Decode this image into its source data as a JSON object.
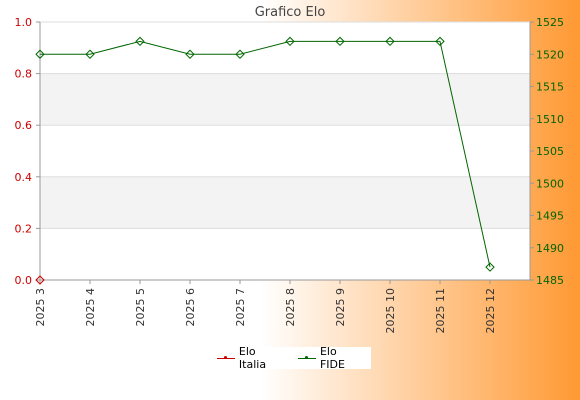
{
  "chart_data": {
    "type": "line",
    "title": "Grafico Elo",
    "categories": [
      "2025 3",
      "2025 4",
      "2025 5",
      "2025 6",
      "2025 7",
      "2025 8",
      "2025 9",
      "2025 10",
      "2025 11",
      "2025 12"
    ],
    "left_axis": {
      "min": 0.0,
      "max": 1.0,
      "ticks": [
        "0.0",
        "0.2",
        "0.4",
        "0.6",
        "0.8",
        "1.0"
      ],
      "color": "#cc0000"
    },
    "right_axis": {
      "min": 1485,
      "max": 1525,
      "ticks": [
        "1485",
        "1490",
        "1495",
        "1500",
        "1505",
        "1510",
        "1515",
        "1520",
        "1525"
      ],
      "color": "#006600"
    },
    "series": [
      {
        "name": "Elo Italia",
        "axis": "left",
        "color": "#cc0000",
        "values": [
          0,
          null,
          null,
          null,
          null,
          null,
          null,
          null,
          null,
          null
        ]
      },
      {
        "name": "Elo FIDE",
        "axis": "right",
        "color": "#006600",
        "values": [
          1520,
          1520,
          1522,
          1520,
          1520,
          1522,
          1522,
          1522,
          1522,
          1487
        ]
      }
    ],
    "legend_position": "bottom-center",
    "grid": true,
    "colors": {
      "background_gradient": [
        "#ffffff",
        "#ff9933"
      ],
      "plot_background": "#ffffff",
      "band_fill": "#f3f3f3"
    }
  }
}
